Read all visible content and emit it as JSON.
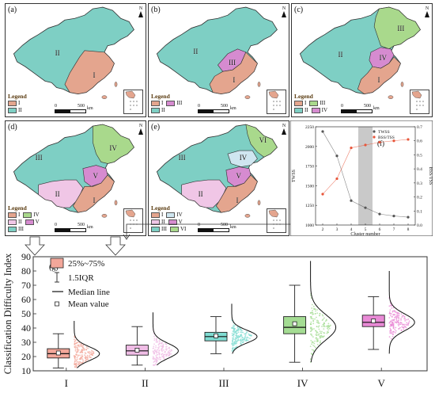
{
  "maps": [
    {
      "label": "(a)",
      "north": "N",
      "legend_title": "Legend",
      "scale": {
        "ticks": [
          "0",
          "500"
        ],
        "unit": "km"
      },
      "regions": [
        {
          "id": "I",
          "color": "#e4a58e"
        },
        {
          "id": "II",
          "color": "#7ecfc4"
        }
      ],
      "legend_rows": [
        [
          "I"
        ],
        [
          "II"
        ]
      ],
      "labels": [
        "II",
        "I"
      ]
    },
    {
      "label": "(b)",
      "north": "N",
      "legend_title": "Legend",
      "scale": {
        "ticks": [
          "0",
          "500"
        ],
        "unit": "km"
      },
      "regions": [
        {
          "id": "I",
          "color": "#e4a58e"
        },
        {
          "id": "II",
          "color": "#7ecfc4"
        },
        {
          "id": "III",
          "color": "#d68bd0"
        }
      ],
      "legend_rows": [
        [
          "I",
          "III"
        ],
        [
          "II"
        ]
      ],
      "labels": [
        "II",
        "III",
        "I"
      ]
    },
    {
      "label": "(c)",
      "north": "N",
      "legend_title": "Legend",
      "scale": {
        "ticks": [
          "0",
          "500"
        ],
        "unit": "km"
      },
      "regions": [
        {
          "id": "I",
          "color": "#e4a58e"
        },
        {
          "id": "II",
          "color": "#7ecfc4"
        },
        {
          "id": "III",
          "color": "#a9d98c"
        },
        {
          "id": "IV",
          "color": "#d68bd0"
        }
      ],
      "legend_rows": [
        [
          "I",
          "III"
        ],
        [
          "II",
          "IV"
        ]
      ],
      "labels": [
        "II",
        "III",
        "IV",
        "I"
      ]
    },
    {
      "label": "(d)",
      "north": "N",
      "legend_title": "Legend",
      "scale": {
        "ticks": [
          "0",
          "500"
        ],
        "unit": "km"
      },
      "regions": [
        {
          "id": "I",
          "color": "#e4a58e"
        },
        {
          "id": "II",
          "color": "#f0c6e6"
        },
        {
          "id": "III",
          "color": "#7ecfc4"
        },
        {
          "id": "IV",
          "color": "#a9d98c"
        },
        {
          "id": "V",
          "color": "#d68bd0"
        }
      ],
      "legend_rows": [
        [
          "I",
          "IV"
        ],
        [
          "II",
          "V"
        ],
        [
          "III"
        ]
      ],
      "labels": [
        "III",
        "IV",
        "II",
        "V",
        "I"
      ]
    },
    {
      "label": "(e)",
      "north": "N",
      "legend_title": "Legend",
      "scale": {
        "ticks": [
          "0",
          "500"
        ],
        "unit": "km"
      },
      "regions": [
        {
          "id": "I",
          "color": "#e4a58e"
        },
        {
          "id": "II",
          "color": "#f0c6e6"
        },
        {
          "id": "III",
          "color": "#7ecfc4"
        },
        {
          "id": "IV",
          "color": "#cfe6f0"
        },
        {
          "id": "V",
          "color": "#d68bd0"
        },
        {
          "id": "VI",
          "color": "#a9d98c"
        }
      ],
      "legend_rows": [
        [
          "I",
          "IV"
        ],
        [
          "II",
          "V"
        ],
        [
          "III",
          "VI"
        ]
      ],
      "labels": [
        "III",
        "VI",
        "IV",
        "II",
        "V",
        "I"
      ]
    }
  ],
  "chart_data": [
    {
      "type": "line",
      "panel_label": "(f)",
      "x": [
        2,
        3,
        4,
        5,
        6,
        7,
        8
      ],
      "xlabel": "Cluster number",
      "xlim": [
        1.5,
        8.5
      ],
      "xticks": [
        "2",
        "3",
        "4",
        "5",
        "6",
        "7",
        "8"
      ],
      "highlight_range": [
        4.5,
        5.5
      ],
      "series": [
        {
          "name": "TWSS",
          "axis": "left",
          "color": "#555555",
          "values": [
            2190,
            1880,
            1310,
            1220,
            1140,
            1115,
            1100
          ]
        },
        {
          "name": "BSS/TSS",
          "axis": "right",
          "color": "#e8553a",
          "values": [
            0.22,
            0.33,
            0.55,
            0.57,
            0.59,
            0.6,
            0.61
          ]
        }
      ],
      "ylabel_left": "TWSS",
      "ylim_left": [
        1000,
        2250
      ],
      "yticks_left": [
        "1000",
        "1250",
        "1500",
        "1750",
        "2000",
        "2250"
      ],
      "ylabel_right": "BSS/TSS",
      "ylim_right": [
        0,
        0.7
      ],
      "yticks_right": [
        "0.0",
        "0.1",
        "0.2",
        "0.3",
        "0.4",
        "0.5",
        "0.6",
        "0.7"
      ],
      "legend_placement": "top-right"
    },
    {
      "type": "box",
      "panel_label": "(g)",
      "ylabel": "Classification Difficulty Index",
      "ylim": [
        10,
        90
      ],
      "yticks": [
        "10",
        "20",
        "30",
        "40",
        "50",
        "60",
        "70",
        "80",
        "90"
      ],
      "categories": [
        "I",
        "II",
        "III",
        "IV",
        "V"
      ],
      "colors": [
        "#f3a79a",
        "#f0bde6",
        "#7fdcd2",
        "#a4dc93",
        "#e98ad6"
      ],
      "boxes": [
        {
          "whisker_low": 12,
          "q1": 19,
          "median": 22,
          "mean": 22.5,
          "q3": 25.5,
          "whisker_high": 36
        },
        {
          "whisker_low": 14,
          "q1": 21,
          "median": 24,
          "mean": 24.5,
          "q3": 28,
          "whisker_high": 41
        },
        {
          "whisker_low": 22,
          "q1": 31,
          "median": 34,
          "mean": 34.5,
          "q3": 37,
          "whisker_high": 48
        },
        {
          "whisker_low": 16,
          "q1": 36,
          "median": 40.5,
          "mean": 43,
          "q3": 48,
          "whisker_high": 70
        },
        {
          "whisker_low": 25,
          "q1": 41,
          "median": 44,
          "mean": 45,
          "q3": 49,
          "whisker_high": 62
        }
      ],
      "distribution_range": [
        [
          12,
          45
        ],
        [
          14,
          51
        ],
        [
          22,
          57
        ],
        [
          16,
          87
        ],
        [
          22,
          80
        ]
      ],
      "legend": {
        "iqr": "25%~75%",
        "whisker": "1.5IQR",
        "median": "Median line",
        "mean": "Mean value"
      },
      "legend_placement": "top-left"
    }
  ]
}
